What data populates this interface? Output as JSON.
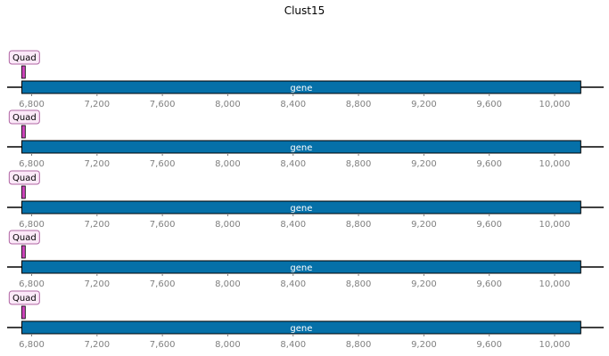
{
  "title": "Clust15",
  "colors": {
    "gene_fill": "#0570a8",
    "gene_stroke": "#000000",
    "marker_fill": "#cc44bb",
    "marker_label_bg": "#fbe9f8",
    "marker_label_border": "#b066a4",
    "axis_line": "#000000",
    "tick_text": "#808080"
  },
  "x_range": [
    6650,
    10300
  ],
  "ticks": [
    6800,
    7200,
    7600,
    8000,
    8400,
    8800,
    9200,
    9600,
    10000
  ],
  "tick_labels": [
    "6,800",
    "7,200",
    "7,600",
    "8,000",
    "8,400",
    "8,800",
    "9,200",
    "9,600",
    "10,000"
  ],
  "tracks": [
    {
      "gene": {
        "label": "gene",
        "start": 6740,
        "end": 10160
      },
      "marker": {
        "label": "Quad",
        "position": 6750
      }
    },
    {
      "gene": {
        "label": "gene",
        "start": 6740,
        "end": 10160
      },
      "marker": {
        "label": "Quad",
        "position": 6750
      }
    },
    {
      "gene": {
        "label": "gene",
        "start": 6740,
        "end": 10160
      },
      "marker": {
        "label": "Quad",
        "position": 6750
      }
    },
    {
      "gene": {
        "label": "gene",
        "start": 6740,
        "end": 10160
      },
      "marker": {
        "label": "Quad",
        "position": 6750
      }
    },
    {
      "gene": {
        "label": "gene",
        "start": 6740,
        "end": 10160
      },
      "marker": {
        "label": "Quad",
        "position": 6750
      }
    }
  ]
}
